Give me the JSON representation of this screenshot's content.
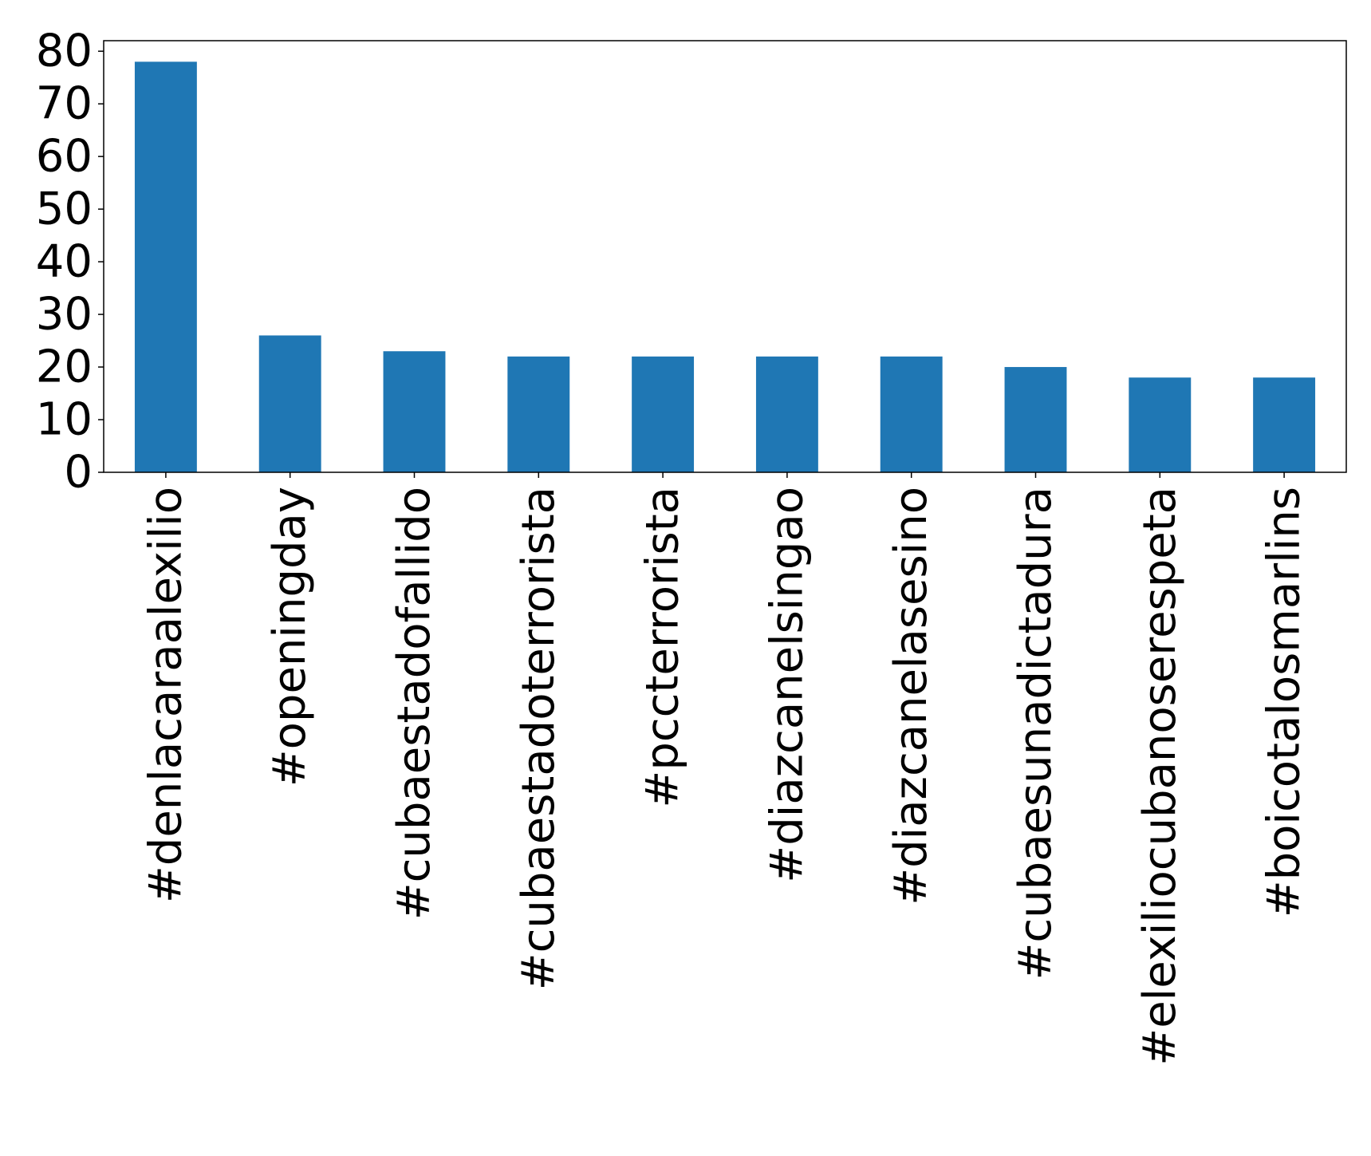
{
  "chart_data": {
    "type": "bar",
    "categories": [
      "#denlacaraalexilio",
      "#openingday",
      "#cubaestadofallido",
      "#cubaestadoterrorista",
      "#pccterrorista",
      "#diazcanelsingao",
      "#diazcanelasesino",
      "#cubaesunadictadura",
      "#elexiliocubanoserespeta",
      "#boicotalosmarlins"
    ],
    "values": [
      78,
      26,
      23,
      22,
      22,
      22,
      22,
      20,
      18,
      18
    ],
    "title": "",
    "xlabel": "",
    "ylabel": "",
    "ylim": [
      0,
      82
    ],
    "yticks": [
      0,
      10,
      20,
      30,
      40,
      50,
      60,
      70,
      80
    ],
    "grid": false,
    "bar_color": "#1f77b4"
  }
}
